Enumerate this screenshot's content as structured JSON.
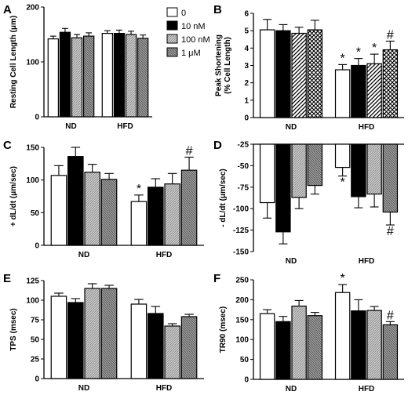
{
  "legend": [
    {
      "label": "0",
      "pattern": "white"
    },
    {
      "label": "10 nM",
      "pattern": "black"
    },
    {
      "label": "100 nM",
      "pattern": "gray"
    },
    {
      "label": "1 μM",
      "pattern": "darkgray"
    }
  ],
  "colors": {
    "white": "#ffffff",
    "black": "#000000",
    "gray": "#bdbdbd",
    "darkgray": "#8c8c8c"
  },
  "chart_data": [
    {
      "id": "A",
      "letter": "A",
      "type": "bar",
      "categories": [
        "ND",
        "HFD"
      ],
      "ylabel": "Resting Cell Length (μm)",
      "ylim": [
        0,
        200
      ],
      "yticks": [
        0,
        100,
        200
      ],
      "series": [
        {
          "values": [
            142,
            152
          ],
          "errors": [
            5,
            5
          ],
          "marks": [
            "",
            ""
          ]
        },
        {
          "values": [
            154,
            152
          ],
          "errors": [
            7,
            6
          ],
          "marks": [
            "",
            ""
          ]
        },
        {
          "values": [
            144,
            150
          ],
          "errors": [
            6,
            6
          ],
          "marks": [
            "",
            ""
          ]
        },
        {
          "values": [
            147,
            143
          ],
          "errors": [
            6,
            6
          ],
          "marks": [
            "",
            ""
          ]
        }
      ]
    },
    {
      "id": "B",
      "letter": "B",
      "type": "bar",
      "categories": [
        "ND",
        "HFD"
      ],
      "ylabel": "Peak Shortening (% Cell Length)",
      "ylim": [
        0,
        6
      ],
      "yticks": [
        0,
        1,
        2,
        3,
        4,
        5,
        6
      ],
      "series": [
        {
          "values": [
            5.05,
            2.75
          ],
          "errors": [
            0.6,
            0.3
          ],
          "marks": [
            "",
            "*"
          ],
          "pattern": "white"
        },
        {
          "values": [
            5.0,
            3.0
          ],
          "errors": [
            0.35,
            0.4
          ],
          "marks": [
            "",
            "*"
          ],
          "pattern": "black"
        },
        {
          "values": [
            4.85,
            3.1
          ],
          "errors": [
            0.35,
            0.55
          ],
          "marks": [
            "",
            "*"
          ],
          "pattern": "hatch"
        },
        {
          "values": [
            5.05,
            3.9
          ],
          "errors": [
            0.55,
            0.5
          ],
          "marks": [
            "",
            "#"
          ],
          "pattern": "cross"
        }
      ]
    },
    {
      "id": "C",
      "letter": "C",
      "type": "bar",
      "categories": [
        "ND",
        "HFD"
      ],
      "ylabel": "+ dL/dt (μm/sec)",
      "ylim": [
        0,
        150
      ],
      "yticks": [
        0,
        50,
        100,
        150
      ],
      "series": [
        {
          "values": [
            107,
            67
          ],
          "errors": [
            15,
            10
          ],
          "marks": [
            "",
            "*"
          ]
        },
        {
          "values": [
            136,
            89
          ],
          "errors": [
            14,
            13
          ],
          "marks": [
            "",
            ""
          ]
        },
        {
          "values": [
            112,
            94
          ],
          "errors": [
            12,
            16
          ],
          "marks": [
            "",
            ""
          ]
        },
        {
          "values": [
            101,
            115
          ],
          "errors": [
            9,
            20
          ],
          "marks": [
            "",
            "#"
          ]
        }
      ]
    },
    {
      "id": "D",
      "letter": "D",
      "type": "bar",
      "categories": [
        "ND",
        "HFD"
      ],
      "ylabel": "- dL/dt (μm/sec)",
      "ylim": [
        -150,
        -25
      ],
      "ybase": -25,
      "yticks": [
        -25,
        -50,
        -75,
        -100,
        -125,
        -150
      ],
      "series": [
        {
          "values": [
            -93,
            -52
          ],
          "errors": [
            18,
            10
          ],
          "marks": [
            "",
            "*"
          ]
        },
        {
          "values": [
            -127,
            -86
          ],
          "errors": [
            14,
            13
          ],
          "marks": [
            "",
            ""
          ]
        },
        {
          "values": [
            -87,
            -83
          ],
          "errors": [
            13,
            15
          ],
          "marks": [
            "",
            ""
          ]
        },
        {
          "values": [
            -73,
            -104
          ],
          "errors": [
            10,
            15
          ],
          "marks": [
            "",
            "#"
          ]
        }
      ]
    },
    {
      "id": "E",
      "letter": "E",
      "type": "bar",
      "categories": [
        "ND",
        "HFD"
      ],
      "ylabel": "TPS (msec)",
      "ylim": [
        0,
        125
      ],
      "yticks": [
        0,
        25,
        50,
        75,
        100,
        125
      ],
      "series": [
        {
          "values": [
            105,
            95
          ],
          "errors": [
            4,
            6
          ],
          "marks": [
            "",
            ""
          ]
        },
        {
          "values": [
            97,
            83
          ],
          "errors": [
            5,
            9
          ],
          "marks": [
            "",
            ""
          ]
        },
        {
          "values": [
            115,
            67
          ],
          "errors": [
            6,
            3
          ],
          "marks": [
            "",
            ""
          ]
        },
        {
          "values": [
            115,
            79
          ],
          "errors": [
            4,
            3
          ],
          "marks": [
            "",
            ""
          ]
        }
      ]
    },
    {
      "id": "F",
      "letter": "F",
      "type": "bar",
      "categories": [
        "ND",
        "HFD"
      ],
      "ylabel": "TR90 (msec)",
      "ylim": [
        0,
        250
      ],
      "yticks": [
        0,
        50,
        100,
        150,
        200,
        250
      ],
      "series": [
        {
          "values": [
            165,
            218
          ],
          "errors": [
            10,
            20
          ],
          "marks": [
            "",
            "*"
          ]
        },
        {
          "values": [
            145,
            172
          ],
          "errors": [
            13,
            28
          ],
          "marks": [
            "",
            ""
          ]
        },
        {
          "values": [
            184,
            173
          ],
          "errors": [
            14,
            10
          ],
          "marks": [
            "",
            ""
          ]
        },
        {
          "values": [
            160,
            137
          ],
          "errors": [
            8,
            8
          ],
          "marks": [
            "",
            "#"
          ]
        }
      ]
    }
  ]
}
